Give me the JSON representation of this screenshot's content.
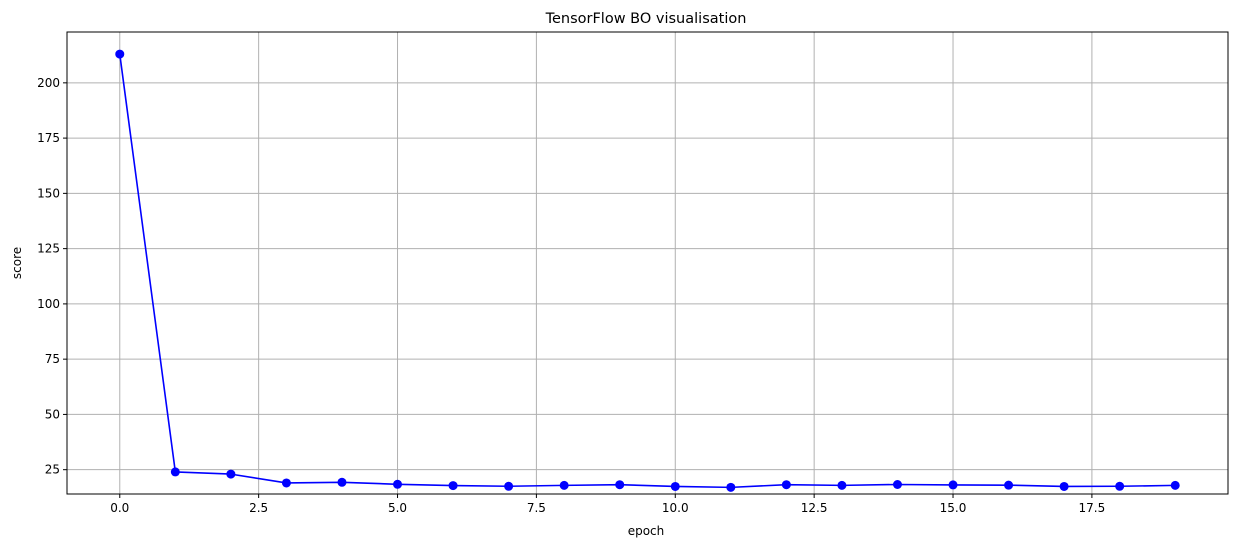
{
  "chart_data": {
    "type": "line",
    "title": "TensorFlow BO visualisation",
    "xlabel": "epoch",
    "ylabel": "score",
    "xlim": [
      -0.95,
      19.95
    ],
    "ylim": [
      14,
      223
    ],
    "grid": true,
    "x_ticks": [
      0.0,
      2.5,
      5.0,
      7.5,
      10.0,
      12.5,
      15.0,
      17.5
    ],
    "x_tick_labels": [
      "0.0",
      "2.5",
      "5.0",
      "7.5",
      "10.0",
      "12.5",
      "15.0",
      "17.5"
    ],
    "y_ticks": [
      25,
      50,
      75,
      100,
      125,
      150,
      175,
      200
    ],
    "y_tick_labels": [
      "25",
      "50",
      "75",
      "100",
      "125",
      "150",
      "175",
      "200"
    ],
    "series": [
      {
        "color": "#0000ff",
        "marker": "circle",
        "x": [
          0,
          1,
          2,
          3,
          4,
          5,
          6,
          7,
          8,
          9,
          10,
          11,
          12,
          13,
          14,
          15,
          16,
          17,
          18,
          19
        ],
        "values": [
          213.0,
          24.0,
          23.0,
          19.0,
          19.3,
          18.4,
          17.8,
          17.5,
          17.9,
          18.2,
          17.4,
          17.0,
          18.2,
          17.9,
          18.3,
          18.1,
          18.0,
          17.4,
          17.5,
          17.9
        ]
      }
    ]
  }
}
